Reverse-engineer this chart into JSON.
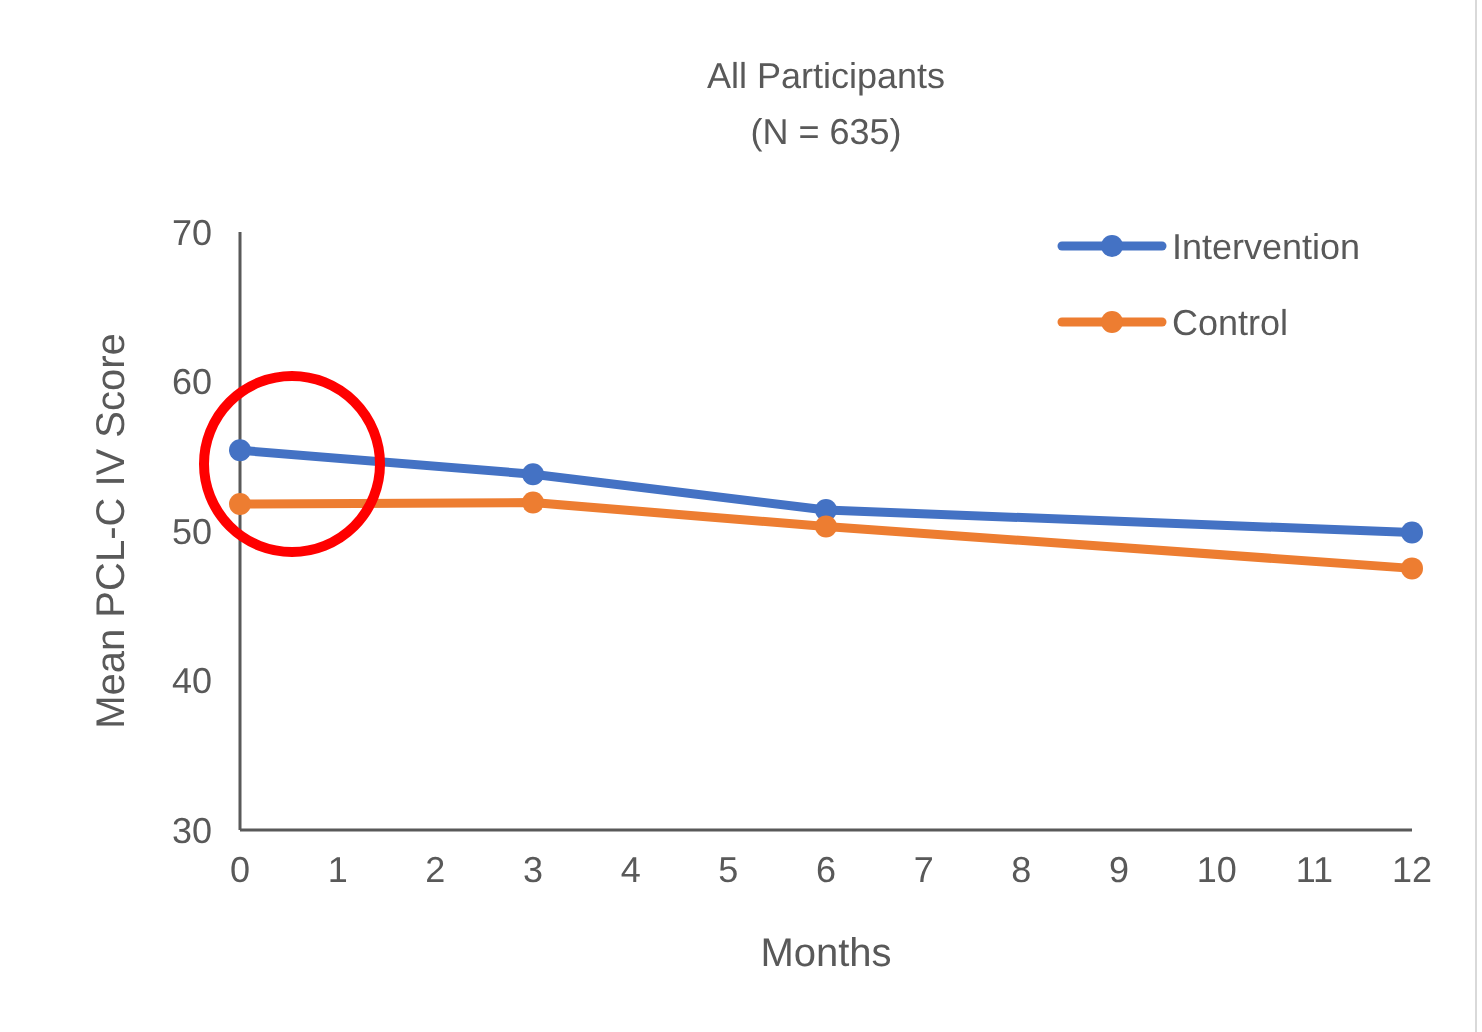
{
  "chart_data": {
    "type": "line",
    "title": "All Participants",
    "subtitle": "(N = 635)",
    "xlabel": "Months",
    "ylabel": "Mean PCL-C IV Score",
    "x": [
      0,
      3,
      6,
      12
    ],
    "series": [
      {
        "name": "Intervention",
        "color": "#4472c4",
        "values": [
          55.4,
          53.8,
          51.4,
          49.9
        ]
      },
      {
        "name": "Control",
        "color": "#ed7d31",
        "values": [
          51.8,
          51.9,
          50.3,
          47.5
        ]
      }
    ],
    "xlim": [
      0,
      12
    ],
    "xticks": [
      0,
      1,
      2,
      3,
      4,
      5,
      6,
      7,
      8,
      9,
      10,
      11,
      12
    ],
    "ylim": [
      30,
      70
    ],
    "yticks": [
      30,
      40,
      50,
      60,
      70
    ],
    "grid": false,
    "legend": "top right",
    "marker": "circle",
    "line_style": "solid"
  }
}
